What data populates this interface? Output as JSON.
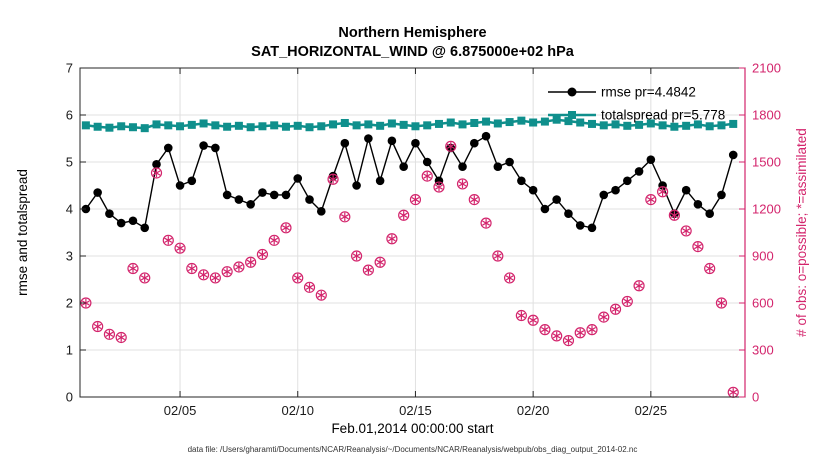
{
  "figure": {
    "title": "Northern Hemisphere",
    "subtitle": "SAT_HORIZONTAL_WIND @ 6.875000e+02 hPa",
    "caption": "data file: /Users/gharamti/Documents/NCAR/Reanalysis/~/Documents/NCAR/Reanalysis/webpub/obs_diag_output_2014-02.nc"
  },
  "colors": {
    "rmse": "#000000",
    "totalspread": "#0f8f8c",
    "obs": "#d3246c",
    "grid": "#e0e0e0",
    "axis": "#262626"
  },
  "chart_data": {
    "type": "line",
    "title": "Northern Hemisphere",
    "subtitle": "SAT_HORIZONTAL_WIND @ 6.875000e+02 hPa",
    "xlabel": "Feb.01,2014 00:00:00 start",
    "ylabel_left": "rmse and totalspread",
    "ylabel_right": "# of obs: o=possible; *=assimilated",
    "xlim": [
      0.75,
      29
    ],
    "ylim_left": [
      0,
      7
    ],
    "ylim_right": [
      0,
      2100
    ],
    "grid": true,
    "legend_position": "top-right",
    "xticks": [
      {
        "value": 5,
        "label": "02/05"
      },
      {
        "value": 10,
        "label": "02/10"
      },
      {
        "value": 15,
        "label": "02/15"
      },
      {
        "value": 20,
        "label": "02/20"
      },
      {
        "value": 25,
        "label": "02/25"
      }
    ],
    "yticks_left": [
      0,
      1,
      2,
      3,
      4,
      5,
      6,
      7
    ],
    "yticks_right": [
      0,
      300,
      600,
      900,
      1200,
      1500,
      1800,
      2100
    ],
    "x_days": [
      1,
      1.5,
      2,
      2.5,
      3,
      3.5,
      4,
      4.5,
      5,
      5.5,
      6,
      6.5,
      7,
      7.5,
      8,
      8.5,
      9,
      9.5,
      10,
      10.5,
      11,
      11.5,
      12,
      12.5,
      13,
      13.5,
      14,
      14.5,
      15,
      15.5,
      16,
      16.5,
      17,
      17.5,
      18,
      18.5,
      19,
      19.5,
      20,
      20.5,
      21,
      21.5,
      22,
      22.5,
      23,
      23.5,
      24,
      24.5,
      25,
      25.5,
      26,
      26.5,
      27,
      27.5,
      28,
      28.5
    ],
    "series": [
      {
        "name": "rmse pr=4.4842",
        "axis": "left",
        "marker": "filled-circle",
        "color": "#000000",
        "values": [
          4.0,
          4.35,
          3.9,
          3.7,
          3.75,
          3.6,
          4.95,
          5.3,
          4.5,
          4.6,
          5.35,
          5.3,
          4.3,
          4.2,
          4.1,
          4.35,
          4.3,
          4.3,
          4.65,
          4.2,
          3.95,
          4.7,
          5.4,
          4.5,
          5.5,
          4.6,
          5.45,
          4.9,
          5.4,
          5.0,
          4.6,
          5.3,
          4.9,
          5.4,
          5.55,
          4.9,
          5.0,
          4.6,
          4.4,
          4.0,
          4.2,
          3.9,
          3.65,
          3.6,
          4.3,
          4.4,
          4.6,
          4.8,
          5.05,
          4.5,
          3.9,
          4.4,
          4.1,
          3.9,
          4.3,
          5.15
        ]
      },
      {
        "name": "totalspread pr=5.778",
        "axis": "left",
        "marker": "filled-square",
        "color": "#0f8f8c",
        "values": [
          5.78,
          5.75,
          5.73,
          5.76,
          5.74,
          5.72,
          5.8,
          5.78,
          5.76,
          5.79,
          5.82,
          5.78,
          5.75,
          5.77,
          5.74,
          5.76,
          5.78,
          5.75,
          5.77,
          5.74,
          5.76,
          5.8,
          5.83,
          5.78,
          5.8,
          5.77,
          5.82,
          5.79,
          5.76,
          5.78,
          5.81,
          5.84,
          5.8,
          5.83,
          5.86,
          5.82,
          5.85,
          5.88,
          5.84,
          5.86,
          5.9,
          5.87,
          5.84,
          5.81,
          5.78,
          5.8,
          5.77,
          5.79,
          5.82,
          5.78,
          5.75,
          5.77,
          5.8,
          5.76,
          5.78,
          5.81
        ]
      },
      {
        "name": "# of obs (o=possible, *=assimilated)",
        "axis": "right",
        "marker": "circle-and-asterisk",
        "color": "#d3246c",
        "line": false,
        "values": [
          600,
          450,
          400,
          380,
          820,
          760,
          1430,
          1000,
          950,
          820,
          780,
          760,
          800,
          830,
          860,
          910,
          1000,
          1080,
          760,
          700,
          650,
          1390,
          1150,
          900,
          810,
          860,
          1010,
          1160,
          1260,
          1410,
          1340,
          1600,
          1360,
          1260,
          1110,
          900,
          760,
          520,
          490,
          430,
          390,
          360,
          410,
          430,
          510,
          560,
          610,
          710,
          1260,
          1310,
          1160,
          1060,
          960,
          820,
          600,
          30
        ]
      }
    ]
  }
}
